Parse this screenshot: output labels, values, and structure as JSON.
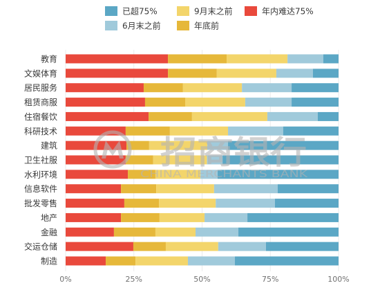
{
  "chart_data": {
    "type": "bar",
    "orientation": "horizontal",
    "stacked": "percent",
    "categories": [
      "教育",
      "文娱体育",
      "居民服务",
      "租赁商服",
      "住宿餐饮",
      "科研技术",
      "建筑",
      "卫生社服",
      "水利环境",
      "信息软件",
      "批发零售",
      "地产",
      "金融",
      "交运仓储",
      "制造"
    ],
    "series": [
      {
        "name": "年内难达75%",
        "color": "#e9493c",
        "values": [
          37.5,
          37.5,
          28.6,
          29.1,
          30.4,
          22.0,
          22.3,
          22.0,
          22.8,
          20.3,
          21.5,
          20.3,
          17.7,
          24.8,
          14.7
        ]
      },
      {
        "name": "年底前",
        "color": "#e6b83a",
        "values": [
          21.5,
          17.9,
          14.4,
          14.7,
          15.9,
          16.2,
          8.3,
          10.1,
          10.1,
          12.9,
          12.7,
          14.1,
          15.2,
          11.9,
          10.9
        ]
      },
      {
        "name": "9月末之前",
        "color": "#f3d56b",
        "values": [
          22.3,
          21.8,
          21.6,
          22.0,
          27.6,
          21.3,
          21.3,
          19.7,
          16.5,
          21.2,
          20.8,
          16.5,
          14.7,
          19.2,
          19.2
        ]
      },
      {
        "name": "6月末之前",
        "color": "#a0cadb",
        "values": [
          13.1,
          13.4,
          18.2,
          17.0,
          18.5,
          20.2,
          7.6,
          5.7,
          6.3,
          23.3,
          21.7,
          15.7,
          15.7,
          17.5,
          17.2
        ]
      },
      {
        "name": "已超75%",
        "color": "#5ba7c5",
        "values": [
          5.6,
          9.4,
          17.2,
          17.2,
          7.6,
          20.3,
          40.5,
          42.5,
          44.3,
          22.3,
          23.3,
          33.4,
          36.7,
          26.6,
          38.0
        ]
      }
    ],
    "xlim": [
      0,
      100
    ],
    "xticks": [
      0,
      25,
      50,
      75,
      100
    ],
    "xtick_labels": [
      "0%",
      "25%",
      "50%",
      "75%",
      "100%"
    ],
    "legend_position": "top",
    "grid": "vertical"
  },
  "watermark": {
    "name_cn": "招商银行",
    "name_en": "CHINA MERCHANTS BANK"
  }
}
